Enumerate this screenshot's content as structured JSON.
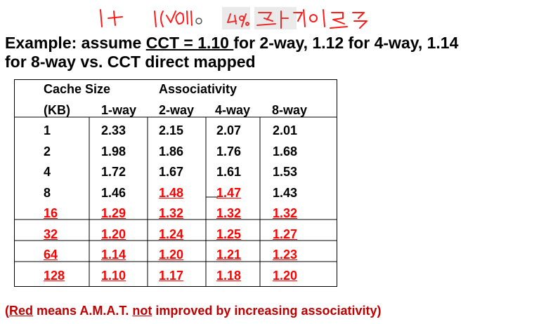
{
  "title": {
    "prefix": "Example: assume ",
    "underlined": "CCT = 1.10 ",
    "suffix": "for 2-way, 1.12 for 4-way, 1.14",
    "line2": "for 8-way vs. CCT direct mapped"
  },
  "table": {
    "header_row1": {
      "cache_size": "Cache Size",
      "associativity": "Associativity"
    },
    "header_row2": {
      "kb": "(KB)",
      "c1": "1-way",
      "c2": "2-way",
      "c4": "4-way",
      "c8": "8-way"
    },
    "rows": [
      {
        "size": "1",
        "v": [
          "2.33",
          "2.15",
          "2.07",
          "2.01"
        ],
        "red": [
          false,
          false,
          false,
          false,
          false
        ]
      },
      {
        "size": "2",
        "v": [
          "1.98",
          "1.86",
          "1.76",
          "1.68"
        ],
        "red": [
          false,
          false,
          false,
          false,
          false
        ]
      },
      {
        "size": "4",
        "v": [
          "1.72",
          "1.67",
          "1.61",
          "1.53"
        ],
        "red": [
          false,
          false,
          false,
          false,
          false
        ]
      },
      {
        "size": "8",
        "v": [
          "1.46",
          "1.48",
          "1.47",
          "1.43"
        ],
        "red": [
          false,
          false,
          true,
          true,
          false
        ]
      },
      {
        "size": "16",
        "v": [
          "1.29",
          "1.32",
          "1.32",
          "1.32"
        ],
        "red": [
          true,
          true,
          true,
          true,
          true
        ]
      },
      {
        "size": "32",
        "v": [
          "1.20",
          "1.24",
          "1.25",
          "1.27"
        ],
        "red": [
          true,
          true,
          true,
          true,
          true
        ]
      },
      {
        "size": "64",
        "v": [
          "1.14",
          "1.20",
          "1.21",
          "1.23"
        ],
        "red": [
          true,
          true,
          true,
          true,
          true
        ]
      },
      {
        "size": "128",
        "v": [
          "1.10",
          "1.17",
          "1.18",
          "1.20"
        ],
        "red": [
          true,
          true,
          true,
          true,
          true
        ]
      }
    ]
  },
  "footnote": {
    "open": "(",
    "red_word": "Red",
    "mid": " means A.M.A.T. ",
    "not_word": "not",
    "end": " improved by increasing associativity)"
  },
  "colors": {
    "red": "#ff0000",
    "footnote": "#c00000",
    "handwriting": "#ff1a1a"
  }
}
